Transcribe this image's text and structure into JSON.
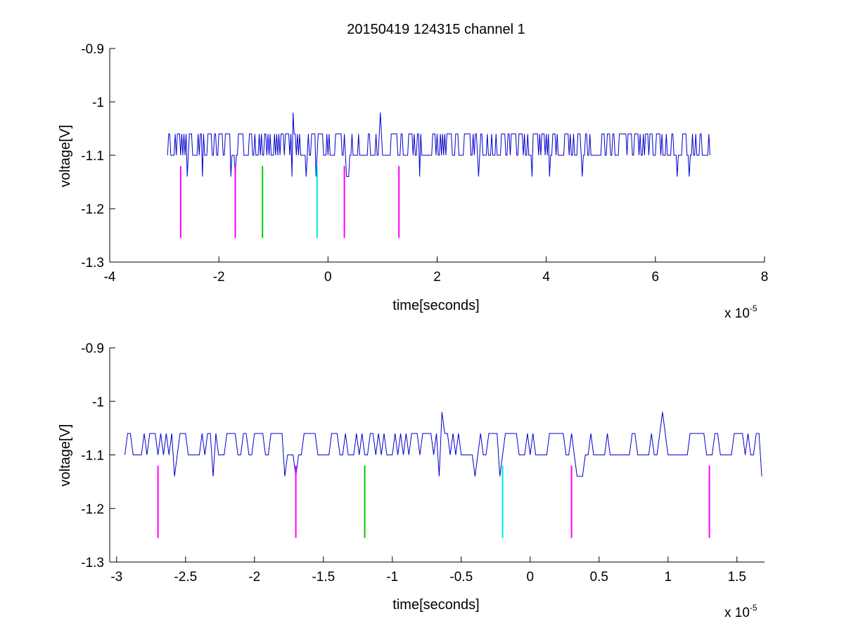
{
  "chart_data": [
    {
      "type": "line",
      "title": "20150419 124315 channel 1",
      "xlabel": "time[seconds]",
      "ylabel": "voltage[V]",
      "xlim": [
        -4,
        8
      ],
      "ylim": [
        -1.3,
        -0.9
      ],
      "x_ticks": [
        -4,
        -2,
        0,
        2,
        4,
        6,
        8
      ],
      "x_tick_labels": [
        "-4",
        "-2",
        "0",
        "2",
        "4",
        "6",
        "8"
      ],
      "y_ticks": [
        -1.3,
        -1.2,
        -1.1,
        -1.0,
        -0.9
      ],
      "y_tick_labels": [
        "-1.3",
        "-1.2",
        "-1.1",
        "-1",
        "-0.9"
      ],
      "x_exponent_base": "x 10",
      "x_exponent": "-5",
      "signal": {
        "color": "#0000cc",
        "x_range": [
          -2.94,
          7.0
        ],
        "levels": [
          -1.1,
          -1.06
        ],
        "low_spikes": -1.14,
        "peaks": [
          {
            "x": -0.63,
            "y": -1.02
          },
          {
            "x": 0.97,
            "y": -1.02
          }
        ]
      },
      "markers": [
        {
          "x": -2.7,
          "y_top": -1.12,
          "y_bottom": -1.255,
          "color": "#ff00ff"
        },
        {
          "x": -1.7,
          "y_top": -1.12,
          "y_bottom": -1.255,
          "color": "#ff00ff"
        },
        {
          "x": -1.2,
          "y_top": -1.12,
          "y_bottom": -1.255,
          "color": "#00cc00"
        },
        {
          "x": -0.2,
          "y_top": -1.12,
          "y_bottom": -1.255,
          "color": "#00e5e5"
        },
        {
          "x": 0.3,
          "y_top": -1.12,
          "y_bottom": -1.255,
          "color": "#ff00ff"
        },
        {
          "x": 1.3,
          "y_top": -1.12,
          "y_bottom": -1.255,
          "color": "#ff00ff"
        }
      ]
    },
    {
      "type": "line",
      "title": "",
      "xlabel": "time[seconds]",
      "ylabel": "voltage[V]",
      "xlim": [
        -3.05,
        1.7
      ],
      "ylim": [
        -1.3,
        -0.9
      ],
      "x_ticks": [
        -3,
        -2.5,
        -2,
        -1.5,
        -1,
        -0.5,
        0,
        0.5,
        1,
        1.5
      ],
      "x_tick_labels": [
        "-3",
        "-2.5",
        "-2",
        "-1.5",
        "-1",
        "-0.5",
        "0",
        "0.5",
        "1",
        "1.5"
      ],
      "y_ticks": [
        -1.3,
        -1.2,
        -1.1,
        -1.0,
        -0.9
      ],
      "y_tick_labels": [
        "-1.3",
        "-1.2",
        "-1.1",
        "-1",
        "-0.9"
      ],
      "x_exponent_base": "x 10",
      "x_exponent": "-5",
      "signal": {
        "color": "#0000cc",
        "x_range": [
          -2.94,
          1.7
        ],
        "levels": [
          -1.1,
          -1.06
        ],
        "low_spikes": -1.14,
        "peaks": [
          {
            "x": -0.63,
            "y": -1.02
          },
          {
            "x": 0.97,
            "y": -1.02
          }
        ]
      },
      "markers": [
        {
          "x": -2.7,
          "y_top": -1.12,
          "y_bottom": -1.255,
          "color": "#ff00ff"
        },
        {
          "x": -1.7,
          "y_top": -1.12,
          "y_bottom": -1.255,
          "color": "#ff00ff"
        },
        {
          "x": -1.2,
          "y_top": -1.12,
          "y_bottom": -1.255,
          "color": "#00cc00"
        },
        {
          "x": -0.2,
          "y_top": -1.12,
          "y_bottom": -1.255,
          "color": "#00e5e5"
        },
        {
          "x": 0.3,
          "y_top": -1.12,
          "y_bottom": -1.255,
          "color": "#ff00ff"
        },
        {
          "x": 1.3,
          "y_top": -1.12,
          "y_bottom": -1.255,
          "color": "#ff00ff"
        }
      ]
    }
  ]
}
